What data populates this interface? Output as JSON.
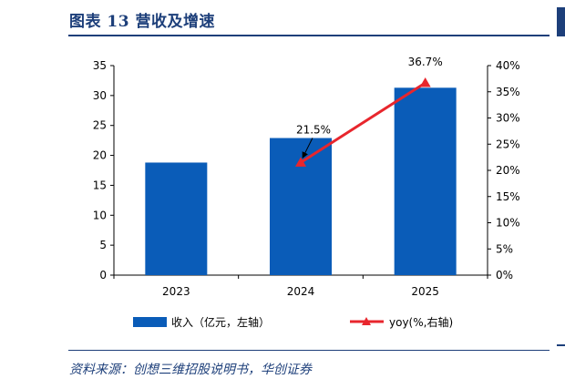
{
  "header": {
    "title": "图表 13   营收及增速"
  },
  "source": "资料来源：创想三维招股说明书，华创证券",
  "chart_data": {
    "type": "bar+line",
    "categories": [
      "2023",
      "2024",
      "2025"
    ],
    "series": [
      {
        "name": "收入（亿元，左轴）",
        "type": "bar",
        "axis": "left",
        "values": [
          18.8,
          22.9,
          31.3
        ],
        "color": "#0a5cb8"
      },
      {
        "name": "yoy(%,右轴)",
        "type": "line",
        "axis": "right",
        "values": [
          null,
          21.5,
          36.7
        ],
        "color": "#e8262d"
      }
    ],
    "annotations": [
      {
        "category": "2024",
        "text": "21.5%"
      },
      {
        "category": "2025",
        "text": "36.7%"
      }
    ],
    "left_axis": {
      "min": 0,
      "max": 35,
      "step": 5,
      "ticks": [
        "0",
        "5",
        "10",
        "15",
        "20",
        "25",
        "30",
        "35"
      ]
    },
    "right_axis": {
      "min": 0,
      "max": 40,
      "step": 5,
      "ticks": [
        "0%",
        "5%",
        "10%",
        "15%",
        "20%",
        "25%",
        "30%",
        "35%",
        "40%"
      ]
    },
    "legend_position": "bottom",
    "grid": false
  }
}
